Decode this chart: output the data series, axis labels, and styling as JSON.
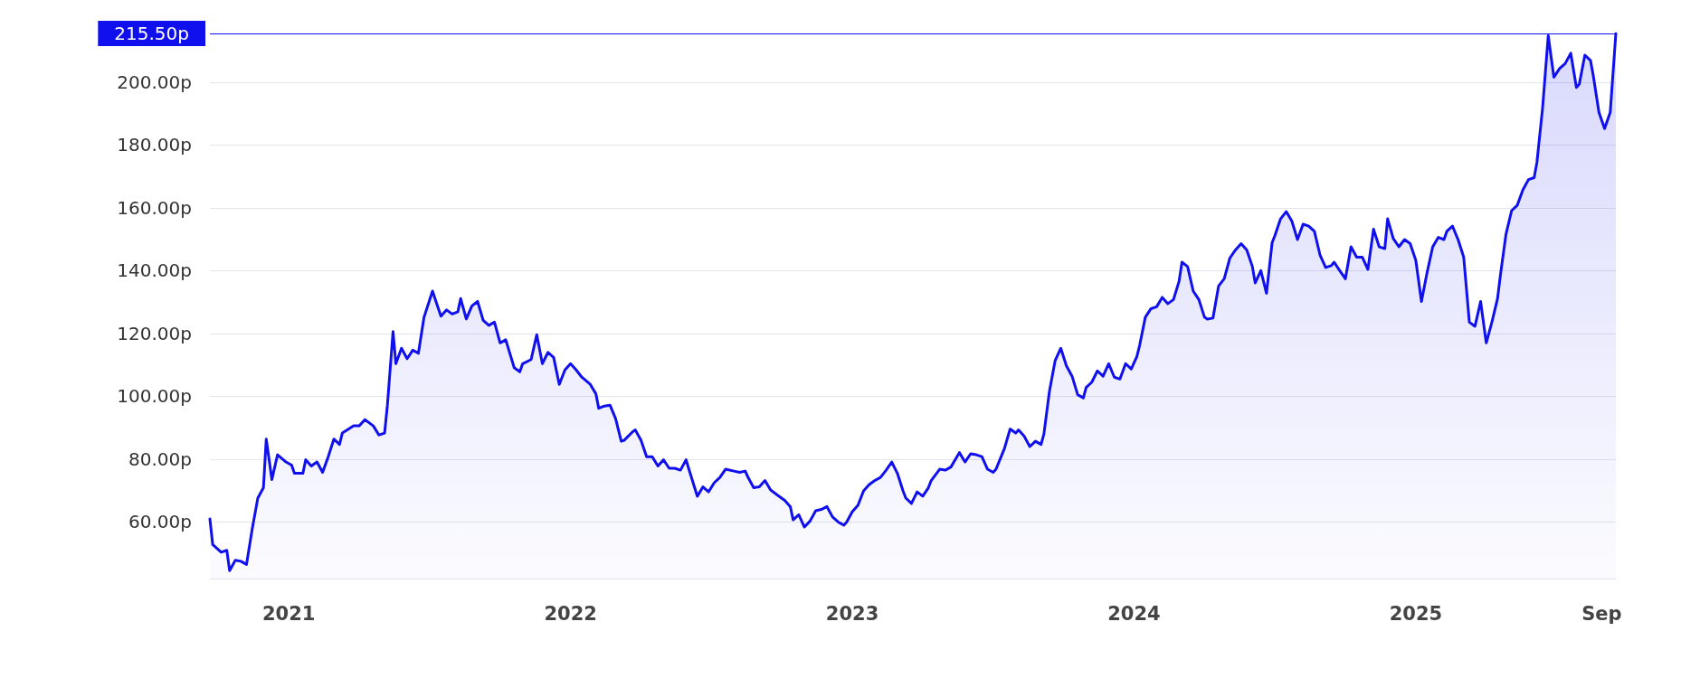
{
  "chart_data": {
    "type": "area",
    "series": [
      {
        "color": "#1010ee",
        "x": [
          2020.72,
          2020.73,
          2020.76,
          2020.78,
          2020.79,
          2020.81,
          2020.83,
          2020.85,
          2020.87,
          2020.89,
          2020.91,
          2020.92,
          2020.94,
          2020.96,
          2020.99,
          2021.01,
          2021.02,
          2021.05,
          2021.06,
          2021.08,
          2021.1,
          2021.12,
          2021.14,
          2021.16,
          2021.18,
          2021.19,
          2021.23,
          2021.25,
          2021.27,
          2021.3,
          2021.32,
          2021.34,
          2021.35,
          2021.37,
          2021.38,
          2021.4,
          2021.42,
          2021.44,
          2021.46,
          2021.48,
          2021.51,
          2021.54,
          2021.56,
          2021.58,
          2021.6,
          2021.61,
          2021.63,
          2021.65,
          2021.67,
          2021.69,
          2021.71,
          2021.73,
          2021.75,
          2021.77,
          2021.8,
          2021.82,
          2021.83,
          2021.86,
          2021.88,
          2021.9,
          2021.92,
          2021.94,
          2021.96,
          2021.98,
          2022.0,
          2022.02,
          2022.04,
          2022.07,
          2022.09,
          2022.1,
          2022.12,
          2022.14,
          2022.16,
          2022.18,
          2022.19,
          2022.22,
          2022.23,
          2022.25,
          2022.27,
          2022.29,
          2022.31,
          2022.33,
          2022.35,
          2022.37,
          2022.39,
          2022.41,
          2022.42,
          2022.45,
          2022.47,
          2022.49,
          2022.51,
          2022.53,
          2022.55,
          2022.58,
          2022.6,
          2022.62,
          2022.63,
          2022.65,
          2022.67,
          2022.69,
          2022.71,
          2022.74,
          2022.76,
          2022.78,
          2022.79,
          2022.81,
          2022.83,
          2022.85,
          2022.87,
          2022.89,
          2022.91,
          2022.93,
          2022.95,
          2022.97,
          2022.98,
          2023.0,
          2023.02,
          2023.04,
          2023.06,
          2023.08,
          2023.1,
          2023.12,
          2023.14,
          2023.16,
          2023.18,
          2023.19,
          2023.21,
          2023.23,
          2023.25,
          2023.27,
          2023.28,
          2023.31,
          2023.33,
          2023.35,
          2023.38,
          2023.4,
          2023.42,
          2023.44,
          2023.46,
          2023.48,
          2023.5,
          2023.51,
          2023.54,
          2023.56,
          2023.58,
          2023.59,
          2023.61,
          2023.63,
          2023.65,
          2023.67,
          2023.68,
          2023.7,
          2023.72,
          2023.74,
          2023.76,
          2023.78,
          2023.8,
          2023.82,
          2023.83,
          2023.85,
          2023.87,
          2023.89,
          2023.91,
          2023.93,
          2023.95,
          2023.97,
          2023.99,
          2024.01,
          2024.02,
          2024.04,
          2024.06,
          2024.08,
          2024.1,
          2024.12,
          2024.14,
          2024.16,
          2024.17,
          2024.19,
          2024.21,
          2024.23,
          2024.25,
          2024.26,
          2024.28,
          2024.3,
          2024.32,
          2024.34,
          2024.36,
          2024.38,
          2024.4,
          2024.42,
          2024.43,
          2024.45,
          2024.47,
          2024.49,
          2024.5,
          2024.52,
          2024.54,
          2024.56,
          2024.58,
          2024.6,
          2024.62,
          2024.64,
          2024.66,
          2024.68,
          2024.7,
          2024.71,
          2024.73,
          2024.75,
          2024.77,
          2024.79,
          2024.81,
          2024.83,
          2024.85,
          2024.87,
          2024.89,
          2024.9,
          2024.92,
          2024.94,
          2024.96,
          2024.98,
          2025.0,
          2025.02,
          2025.04,
          2025.06,
          2025.08,
          2025.1,
          2025.11,
          2025.13,
          2025.15,
          2025.17,
          2025.19,
          2025.21,
          2025.23,
          2025.25,
          2025.27,
          2025.29,
          2025.3,
          2025.32,
          2025.34,
          2025.36,
          2025.38,
          2025.4,
          2025.42,
          2025.43,
          2025.45,
          2025.47,
          2025.49,
          2025.51,
          2025.53,
          2025.55,
          2025.57,
          2025.58,
          2025.6,
          2025.62,
          2025.63,
          2025.65,
          2025.67,
          2025.69,
          2025.71
        ],
        "values": [
          61,
          52.8,
          50.4,
          51,
          44.5,
          47.8,
          47.5,
          46.5,
          57.7,
          67.6,
          70.9,
          86.4,
          73.5,
          81.4,
          79.1,
          78.1,
          75.5,
          75.5,
          79.8,
          77.8,
          79.1,
          75.8,
          80.8,
          86.4,
          84.7,
          88.3,
          90.6,
          90.6,
          92.6,
          90.6,
          87.7,
          88.3,
          97.2,
          120.6,
          110.4,
          115.3,
          112,
          114.7,
          113.7,
          125.2,
          133.5,
          125.5,
          127.5,
          126.2,
          126.9,
          131.1,
          124.6,
          128.8,
          130.2,
          124.2,
          122.6,
          123.6,
          117,
          118,
          109.1,
          107.8,
          110.4,
          111.7,
          119.6,
          110.4,
          114,
          112.4,
          103.8,
          108.4,
          110.4,
          108.4,
          106.1,
          103.8,
          100.8,
          96.2,
          96.9,
          97.2,
          92.9,
          85.7,
          86,
          88.7,
          89.3,
          86,
          80.8,
          80.8,
          77.8,
          79.8,
          77.1,
          77.1,
          76.5,
          79.8,
          76.8,
          68.2,
          71.2,
          69.6,
          72.5,
          74.2,
          76.8,
          76.2,
          75.8,
          76.2,
          74.2,
          70.9,
          71.2,
          73.2,
          70.2,
          68.2,
          66.9,
          64.9,
          60.7,
          62.3,
          58.4,
          60.3,
          63.6,
          64,
          64.9,
          61.6,
          60,
          59,
          60,
          63.3,
          65.3,
          69.9,
          71.9,
          73.2,
          74.2,
          76.5,
          79.1,
          75.5,
          69.9,
          67.6,
          65.9,
          69.6,
          68.2,
          70.9,
          73.2,
          76.8,
          76.5,
          77.5,
          82.1,
          79.1,
          81.7,
          81.4,
          80.8,
          76.8,
          75.8,
          76.8,
          83.4,
          89.6,
          88.3,
          89.3,
          87.3,
          84,
          85.7,
          84.7,
          88,
          101.8,
          111.4,
          115.3,
          109.7,
          106.4,
          100.5,
          99.5,
          102.8,
          104.5,
          108.1,
          106.4,
          110.4,
          106.1,
          105.5,
          110.4,
          108.7,
          112.7,
          116.3,
          125.2,
          127.9,
          128.5,
          131.5,
          129.5,
          130.8,
          136.7,
          142.7,
          141.3,
          133.5,
          130.8,
          125.2,
          124.6,
          124.9,
          135.1,
          137.4,
          144,
          146.6,
          148.6,
          146.6,
          141.3,
          136.1,
          140,
          132.8,
          148.9,
          151.2,
          156.5,
          158.8,
          155.8,
          149.9,
          154.8,
          154.2,
          152.5,
          145,
          141,
          141.6,
          142.7,
          140,
          137.4,
          147.6,
          144.3,
          144.3,
          140.4,
          153.2,
          147.6,
          147,
          156.5,
          150.2,
          147.6,
          149.9,
          148.6,
          143.3,
          130.2,
          139.4,
          147.6,
          150.6,
          149.9,
          152.5,
          154.2,
          149.9,
          144.3,
          123.6,
          122.3,
          130.2,
          117,
          123.6,
          131.1,
          138.4,
          151.6,
          159.1,
          160.8,
          165.7,
          169,
          169.6,
          174.6,
          191.8,
          214.8,
          201.6,
          204.3,
          205.9,
          209.2,
          198.3,
          199.3,
          208.6,
          206.9,
          202,
          190.4,
          185.2,
          190.4,
          215.5
        ]
      }
    ],
    "xlim": [
      2020.72,
      2025.71
    ],
    "xticks": [
      2021,
      2022,
      2023,
      2024,
      2025,
      {
        "value": 2025.66,
        "label": "Sep"
      }
    ],
    "ylim": [
      42,
      215.5
    ],
    "yticks": [
      {
        "value": 60,
        "label": "60.00p"
      },
      {
        "value": 80,
        "label": "80.00p"
      },
      {
        "value": 100,
        "label": "100.00p"
      },
      {
        "value": 120,
        "label": "120.00p"
      },
      {
        "value": 140,
        "label": "140.00p"
      },
      {
        "value": 160,
        "label": "160.00p"
      },
      {
        "value": 180,
        "label": "180.00p"
      },
      {
        "value": 200,
        "label": "200.00p"
      }
    ],
    "annotations": [
      "215.50p"
    ],
    "grid": "y",
    "marker": "none",
    "line_style": "solid"
  }
}
